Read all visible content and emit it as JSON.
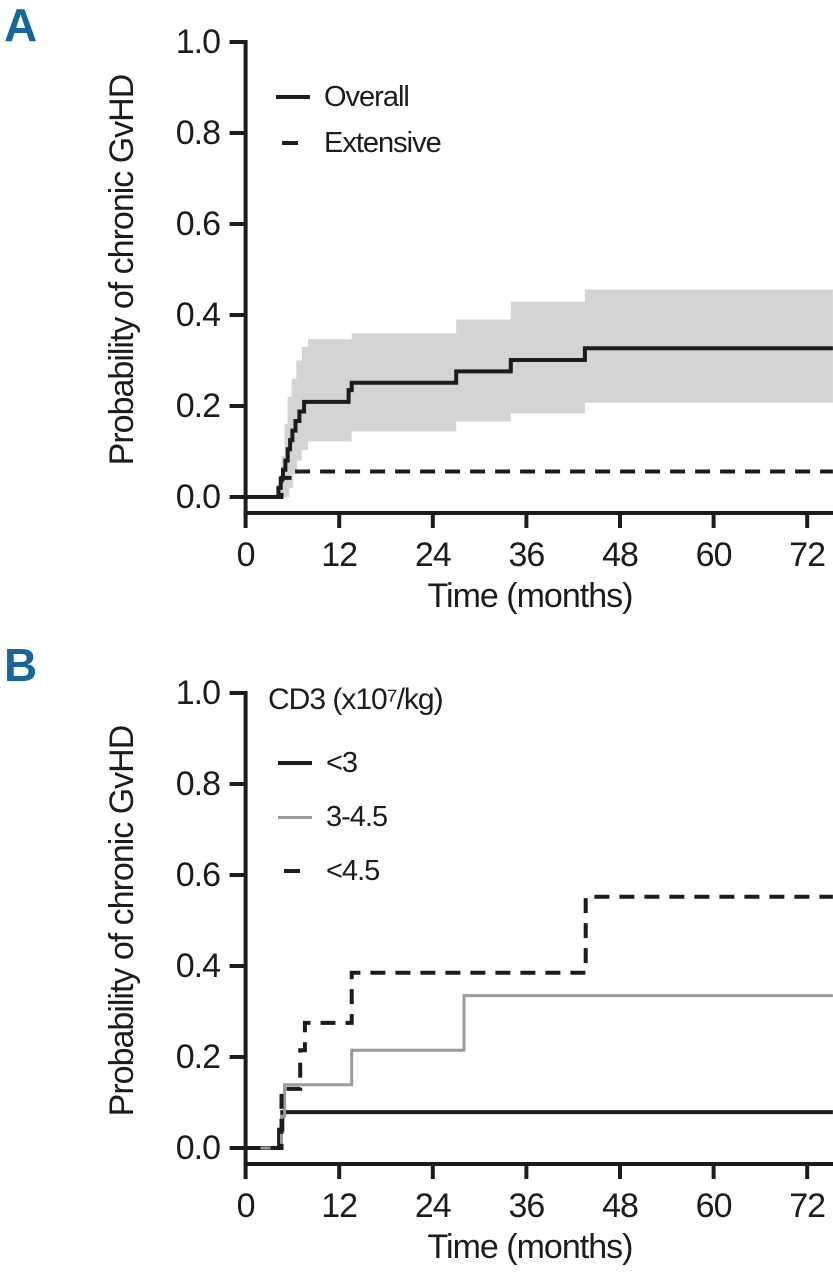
{
  "panels": [
    {
      "label": "A"
    },
    {
      "label": "B"
    }
  ],
  "colors": {
    "background": "#ffffff",
    "panel_label": "#17679a",
    "axis": "#1c1c1c",
    "text": "#1c1c1c",
    "confidence_band": "#d4d4d4",
    "gray_series": "#9b9b9b"
  },
  "chart_data": [
    {
      "type": "line",
      "variant": "kaplan_meier_step",
      "panel": "A",
      "title": "",
      "xlabel": "Time (months)",
      "ylabel": "Probability of chronic GvHD",
      "xlim": [
        0,
        75.3
      ],
      "ylim": [
        0,
        1.0
      ],
      "xticks": [
        "0",
        "12",
        "24",
        "36",
        "48",
        "60",
        "72"
      ],
      "xtick_values": [
        0,
        12,
        24,
        36,
        48,
        60,
        72
      ],
      "yticks": [
        "0.0",
        "0.2",
        "0.4",
        "0.6",
        "0.8",
        "1.0"
      ],
      "ytick_values": [
        0,
        0.2,
        0.4,
        0.6,
        0.8,
        1.0
      ],
      "grid": false,
      "legend_title": "",
      "legend_position": "top-left-inside",
      "series": [
        {
          "name": "Overall",
          "line": "solid",
          "color": "#1c1c1c",
          "width": 4,
          "steps": [
            [
              0,
              0
            ],
            [
              4.2,
              0.02
            ],
            [
              4.5,
              0.04
            ],
            [
              4.8,
              0.06
            ],
            [
              5.1,
              0.08
            ],
            [
              5.4,
              0.105
            ],
            [
              5.7,
              0.125
            ],
            [
              6.0,
              0.146
            ],
            [
              6.4,
              0.167
            ],
            [
              6.9,
              0.188
            ],
            [
              7.5,
              0.209
            ],
            [
              13.2,
              0.235
            ],
            [
              13.6,
              0.251
            ],
            [
              27,
              0.276
            ],
            [
              34,
              0.301
            ],
            [
              43.5,
              0.327
            ]
          ]
        },
        {
          "name": "Extensive",
          "line": "dashed",
          "color": "#1c1c1c",
          "width": 4,
          "steps": [
            [
              0,
              0
            ],
            [
              4.6,
              0.042
            ],
            [
              6.6,
              0.056
            ]
          ]
        }
      ],
      "confidence_band": {
        "applies_to": "Overall",
        "color": "#d4d4d4",
        "lower_steps": [
          [
            0,
            0
          ],
          [
            5.6,
            0.02
          ],
          [
            6.1,
            0.05
          ],
          [
            6.6,
            0.08
          ],
          [
            7.2,
            0.103
          ],
          [
            8.0,
            0.122
          ],
          [
            13.6,
            0.144
          ],
          [
            27,
            0.166
          ],
          [
            34,
            0.184
          ],
          [
            43.5,
            0.207
          ]
        ],
        "upper_steps": [
          [
            0,
            0
          ],
          [
            4.2,
            0.03
          ],
          [
            4.6,
            0.09
          ],
          [
            5.0,
            0.16
          ],
          [
            5.4,
            0.22
          ],
          [
            5.9,
            0.26
          ],
          [
            6.5,
            0.3
          ],
          [
            7.2,
            0.33
          ],
          [
            8.0,
            0.347
          ],
          [
            13.6,
            0.36
          ],
          [
            27,
            0.39
          ],
          [
            34,
            0.429
          ],
          [
            43.5,
            0.456
          ]
        ]
      }
    },
    {
      "type": "line",
      "variant": "kaplan_meier_step",
      "panel": "B",
      "title": "",
      "xlabel": "Time (months)",
      "ylabel": "Probability of chronic GvHD",
      "xlim": [
        0,
        75.3
      ],
      "ylim": [
        0,
        1.0
      ],
      "xticks": [
        "0",
        "12",
        "24",
        "36",
        "48",
        "60",
        "72"
      ],
      "xtick_values": [
        0,
        12,
        24,
        36,
        48,
        60,
        72
      ],
      "yticks": [
        "0.0",
        "0.2",
        "0.4",
        "0.6",
        "0.8",
        "1.0"
      ],
      "ytick_values": [
        0,
        0.2,
        0.4,
        0.6,
        0.8,
        1.0
      ],
      "grid": false,
      "legend_title": "CD3 (x10⁷/kg)",
      "legend_position": "top-left-inside",
      "series": [
        {
          "name": "<3",
          "line": "solid",
          "color": "#1c1c1c",
          "width": 4,
          "steps": [
            [
              0,
              0
            ],
            [
              4.3,
              0.04
            ],
            [
              4.7,
              0.079
            ]
          ]
        },
        {
          "name": "3-4.5",
          "line": "solid",
          "color": "#9b9b9b",
          "width": 3,
          "steps": [
            [
              0,
              0
            ],
            [
              4.6,
              0.07
            ],
            [
              5.0,
              0.139
            ],
            [
              13.6,
              0.215
            ],
            [
              28,
              0.335
            ]
          ]
        },
        {
          "name": "<4.5",
          "line": "dashed",
          "color": "#1c1c1c",
          "width": 4,
          "steps": [
            [
              0,
              0
            ],
            [
              4.6,
              0.13
            ],
            [
              7.0,
              0.215
            ],
            [
              7.6,
              0.275
            ],
            [
              13.6,
              0.385
            ],
            [
              43.6,
              0.552
            ]
          ]
        }
      ],
      "confidence_band": null
    }
  ]
}
